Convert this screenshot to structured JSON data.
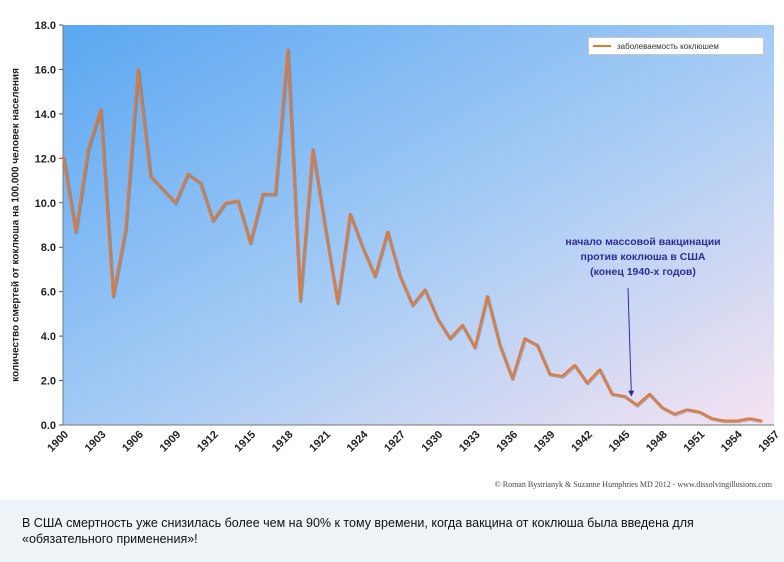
{
  "chart_data": {
    "type": "line",
    "ylabel": "количество смертей от коклюша на 100.000 человек населения",
    "xlabel": "",
    "ylim": [
      0,
      18
    ],
    "yticks": [
      "0.0",
      "2.0",
      "4.0",
      "6.0",
      "8.0",
      "10.0",
      "12.0",
      "14.0",
      "16.0",
      "18.0"
    ],
    "xticks": [
      "1900",
      "1903",
      "1906",
      "1909",
      "1912",
      "1915",
      "1918",
      "1921",
      "1924",
      "1927",
      "1930",
      "1933",
      "1936",
      "1939",
      "1942",
      "1945",
      "1948",
      "1951",
      "1954",
      "1957"
    ],
    "xlim": [
      1900,
      1957
    ],
    "grid": false,
    "legend_position": "top-right",
    "series": [
      {
        "name": "заболеваемость коклюшем",
        "color": "#e07a3a",
        "x": [
          1900,
          1901,
          1902,
          1903,
          1904,
          1905,
          1906,
          1907,
          1908,
          1909,
          1910,
          1911,
          1912,
          1913,
          1914,
          1915,
          1916,
          1917,
          1918,
          1919,
          1920,
          1921,
          1922,
          1923,
          1924,
          1925,
          1926,
          1927,
          1928,
          1929,
          1930,
          1931,
          1932,
          1933,
          1934,
          1935,
          1936,
          1937,
          1938,
          1939,
          1940,
          1941,
          1942,
          1943,
          1944,
          1945,
          1946,
          1947,
          1948,
          1949,
          1950,
          1951,
          1952,
          1953,
          1954,
          1955,
          1956
        ],
        "values": [
          12.1,
          8.7,
          12.4,
          14.2,
          5.8,
          8.8,
          16.0,
          11.2,
          10.6,
          10.0,
          11.3,
          10.9,
          9.2,
          10.0,
          10.1,
          8.2,
          10.4,
          10.4,
          16.9,
          5.6,
          12.4,
          8.9,
          5.5,
          9.5,
          8.0,
          6.7,
          8.7,
          6.7,
          5.4,
          6.1,
          4.8,
          3.9,
          4.5,
          3.5,
          5.8,
          3.6,
          2.1,
          3.9,
          3.6,
          2.3,
          2.2,
          2.7,
          1.9,
          2.5,
          1.4,
          1.3,
          0.9,
          1.4,
          0.8,
          0.5,
          0.7,
          0.6,
          0.3,
          0.2,
          0.2,
          0.3,
          0.2
        ]
      }
    ]
  },
  "annotation": {
    "lines": [
      "начало массовой вакцинации",
      "против коклюша  в США",
      "(конец  1940-х годов)"
    ],
    "arrow_target": {
      "x": 1945,
      "y": 1.5
    }
  },
  "credit": "© Roman Bystrianyk & Suzanne Humphries MD 2012 - www.dissolvingillusions.com",
  "caption": "В США смертность уже снизилась более чем на 90% к тому времени, когда вакцина от коклюша была введена для «обязательного применения»!",
  "colors": {
    "plot_gradient_start": "#5aa7f2",
    "plot_gradient_mid": "#a9cdf5",
    "plot_gradient_end": "#f6e3f1",
    "line": "#e07a3a",
    "line_shadow": "#8a6a55",
    "annotation": "#2d2d9a"
  }
}
